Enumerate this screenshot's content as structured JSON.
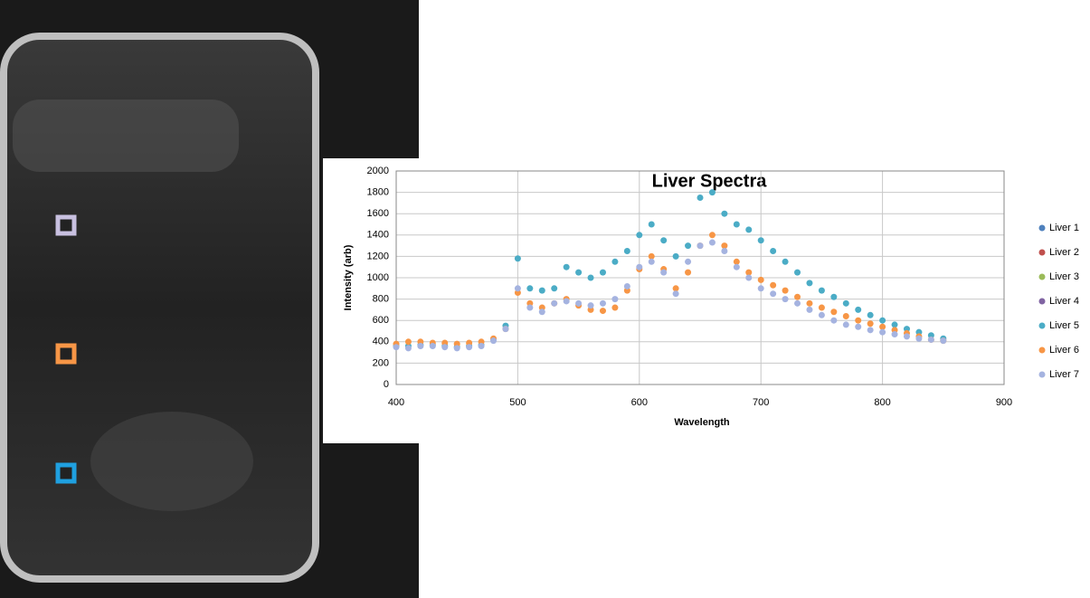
{
  "chart_data": {
    "type": "scatter",
    "title": "Liver Spectra",
    "x_label": "Wavelength",
    "y_label": "Intensity (arb)",
    "xlim": [
      400,
      900
    ],
    "xticks": [
      400,
      500,
      600,
      700,
      800,
      900
    ],
    "ylim": [
      0,
      2000
    ],
    "yticks": [
      0,
      200,
      400,
      600,
      800,
      1000,
      1200,
      1400,
      1600,
      1800,
      2000
    ],
    "grid": true,
    "legend": "right",
    "x": [
      400,
      410,
      420,
      430,
      440,
      450,
      460,
      470,
      480,
      490,
      500,
      510,
      520,
      530,
      540,
      550,
      560,
      570,
      580,
      590,
      600,
      610,
      620,
      630,
      640,
      650,
      660,
      670,
      680,
      690,
      700,
      710,
      720,
      730,
      740,
      750,
      760,
      770,
      780,
      790,
      800,
      810,
      820,
      830,
      840,
      850
    ],
    "series": [
      {
        "name": "Liver 1",
        "color": "#4f81bd",
        "values": [
          null,
          null,
          null,
          null,
          null,
          null,
          null,
          null,
          null,
          null,
          null,
          null,
          null,
          null,
          null,
          null,
          null,
          null,
          null,
          null,
          null,
          null,
          null,
          null,
          null,
          null,
          null,
          null,
          null,
          null,
          null,
          null,
          null,
          null,
          null,
          null,
          null,
          null,
          null,
          null,
          null,
          null,
          null,
          null,
          null,
          null
        ]
      },
      {
        "name": "Liver 2",
        "color": "#c0504d",
        "values": [
          null,
          null,
          null,
          null,
          null,
          null,
          null,
          null,
          null,
          null,
          null,
          null,
          null,
          null,
          null,
          null,
          null,
          null,
          null,
          null,
          null,
          null,
          null,
          null,
          null,
          null,
          null,
          null,
          null,
          null,
          null,
          null,
          null,
          null,
          null,
          null,
          null,
          null,
          null,
          null,
          null,
          null,
          null,
          null,
          null,
          null
        ]
      },
      {
        "name": "Liver 3",
        "color": "#9bbb59",
        "values": [
          null,
          null,
          null,
          null,
          null,
          null,
          null,
          null,
          null,
          null,
          null,
          null,
          null,
          null,
          null,
          null,
          null,
          null,
          null,
          null,
          null,
          null,
          null,
          null,
          null,
          null,
          null,
          null,
          null,
          null,
          null,
          null,
          null,
          null,
          null,
          null,
          null,
          null,
          null,
          null,
          null,
          null,
          null,
          null,
          null,
          null
        ]
      },
      {
        "name": "Liver 4",
        "color": "#8064a2",
        "values": [
          null,
          null,
          null,
          null,
          null,
          null,
          null,
          null,
          null,
          null,
          null,
          null,
          null,
          null,
          null,
          null,
          null,
          null,
          null,
          null,
          null,
          null,
          null,
          null,
          null,
          null,
          null,
          null,
          null,
          null,
          null,
          null,
          null,
          null,
          null,
          null,
          null,
          null,
          null,
          null,
          null,
          null,
          null,
          null,
          null,
          null
        ]
      },
      {
        "name": "Liver 5",
        "color": "#4bacc6",
        "values": [
          360,
          360,
          370,
          370,
          360,
          350,
          360,
          370,
          420,
          550,
          1180,
          900,
          880,
          900,
          1100,
          1050,
          1000,
          1050,
          1150,
          1250,
          1400,
          1500,
          1350,
          1200,
          1300,
          1750,
          1800,
          1600,
          1500,
          1450,
          1350,
          1250,
          1150,
          1050,
          950,
          880,
          820,
          760,
          700,
          650,
          600,
          560,
          520,
          490,
          460,
          430
        ]
      },
      {
        "name": "Liver 6",
        "color": "#f79646",
        "values": [
          380,
          400,
          400,
          390,
          390,
          380,
          390,
          400,
          430,
          520,
          860,
          760,
          720,
          760,
          800,
          740,
          700,
          690,
          720,
          880,
          1080,
          1200,
          1080,
          900,
          1050,
          1300,
          1400,
          1300,
          1150,
          1050,
          980,
          930,
          880,
          820,
          760,
          720,
          680,
          640,
          600,
          570,
          540,
          510,
          480,
          450,
          420,
          410
        ]
      },
      {
        "name": "Liver 7",
        "color": "#a5b3e0",
        "values": [
          350,
          340,
          360,
          360,
          350,
          340,
          350,
          360,
          410,
          520,
          900,
          720,
          680,
          760,
          780,
          760,
          740,
          760,
          800,
          920,
          1100,
          1150,
          1050,
          850,
          1150,
          1300,
          1330,
          1250,
          1100,
          1000,
          900,
          850,
          800,
          760,
          700,
          650,
          600,
          560,
          540,
          510,
          490,
          470,
          450,
          430,
          420,
          410
        ]
      }
    ]
  }
}
